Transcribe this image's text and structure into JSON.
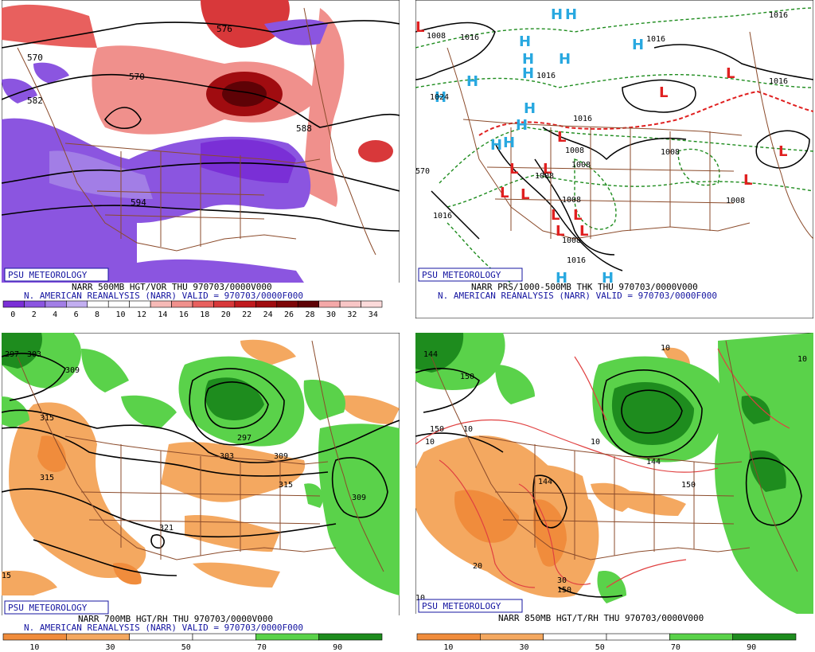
{
  "badge": "PSU METEOROLOGY",
  "panels": [
    {
      "id": "tl",
      "line1": "NARR 500MB HGT/VOR THU 970703/0000V000",
      "line2": "N. AMERICAN REANALYSIS (NARR) VALID = 970703/0000F000",
      "colorbar_ticks": [
        "0",
        "2",
        "4",
        "6",
        "8",
        "10",
        "12",
        "14",
        "16",
        "18",
        "20",
        "22",
        "24",
        "26",
        "28",
        "30",
        "32",
        "34"
      ],
      "colors": [
        "#7a2fd6",
        "#8b55e0",
        "#a27ee6",
        "#c2aef0",
        "#ffffff",
        "#ffffff",
        "#ffffff",
        "#f6b9b6",
        "#f0908c",
        "#e8605e",
        "#d8383a",
        "#c01a1e",
        "#a00c10",
        "#7e0608",
        "#5e0206",
        "#f4a8a8",
        "#f8c6c6",
        "#fbdada"
      ],
      "contour_labels": [
        "570",
        "582",
        "570",
        "594",
        "588",
        "576"
      ]
    },
    {
      "id": "tr",
      "line1": "NARR PRS/1000-500MB THK THU 970703/0000V000",
      "line2": "N. AMERICAN REANALYSIS (NARR) VALID = 970703/0000F000",
      "contour_labels": [
        "1008",
        "1016",
        "1024",
        "1016",
        "1016",
        "1008",
        "1008",
        "1008",
        "1016",
        "1016",
        "1008",
        "1016",
        "1008",
        "1008",
        "1008",
        "1016",
        "1016",
        "570"
      ],
      "high_label": "H",
      "low_label": "L"
    },
    {
      "id": "bl",
      "line1": "NARR 700MB HGT/RH THU 970703/0000V000",
      "line2": "N. AMERICAN REANALYSIS (NARR) VALID = 970703/0000F000",
      "colorbar_ticks": [
        "10",
        "30",
        "50",
        "70",
        "90"
      ],
      "colors": [
        "#f08c3c",
        "#f4a860",
        "#ffffff",
        "#ffffff",
        "#5ad24a",
        "#1e8c1e"
      ],
      "contour_labels": [
        "297",
        "303",
        "309",
        "315",
        "315",
        "297",
        "303",
        "309",
        "315",
        "321",
        "309",
        "15"
      ]
    },
    {
      "id": "br",
      "line1": "NARR 850MB HGT/T/RH THU 970703/0000V000",
      "line2": "",
      "colorbar_ticks": [
        "10",
        "30",
        "50",
        "70",
        "90"
      ],
      "colors": [
        "#f08c3c",
        "#f4a860",
        "#ffffff",
        "#ffffff",
        "#5ad24a",
        "#1e8c1e"
      ],
      "contour_labels": [
        "144",
        "150",
        "150",
        "144",
        "144",
        "150",
        "150",
        "10",
        "10",
        "10",
        "10",
        "20",
        "30",
        "10",
        "10"
      ]
    }
  ]
}
